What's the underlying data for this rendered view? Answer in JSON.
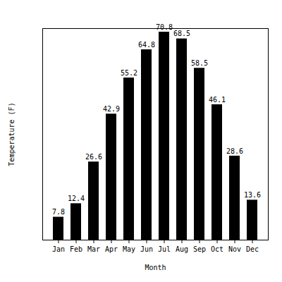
{
  "chart_data": {
    "type": "bar",
    "x_label": "Month",
    "y_label": "Temperature (F)",
    "categories": [
      "Jan",
      "Feb",
      "Mar",
      "Apr",
      "May",
      "Jun",
      "Jul",
      "Aug",
      "Sep",
      "Oct",
      "Nov",
      "Dec"
    ],
    "values": [
      7.8,
      12.4,
      26.6,
      42.9,
      55.2,
      64.8,
      70.8,
      68.5,
      58.5,
      46.1,
      28.6,
      13.6
    ],
    "color": "#000000",
    "ylim": [
      0,
      72
    ],
    "yticks": [],
    "grid": false,
    "data_labels": true,
    "tick_labels": "x"
  }
}
